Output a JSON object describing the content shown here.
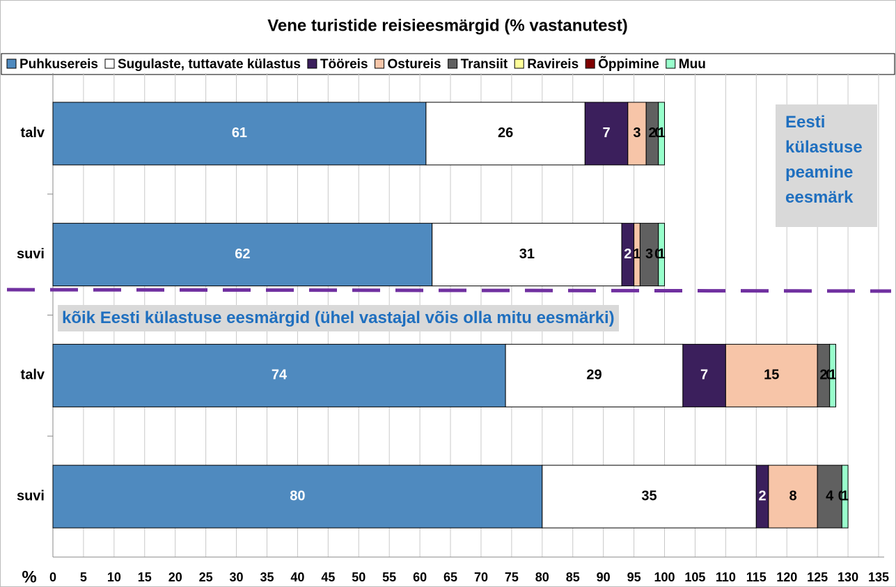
{
  "chart_data": {
    "type": "stacked_bar_horizontal",
    "title": "Vene turistide reisieesmärgid (% vastanutest)",
    "categories": [
      "talv",
      "suvi",
      "talv",
      "suvi"
    ],
    "series": [
      {
        "name": "Puhkusereis",
        "color": "#4f8abf",
        "values": [
          61,
          62,
          74,
          80
        ]
      },
      {
        "name": "Sugulaste, tuttavate külastus",
        "color": "#ffffff",
        "values": [
          26,
          31,
          29,
          35
        ]
      },
      {
        "name": "Tööreis",
        "color": "#3b1f5c",
        "values": [
          7,
          2,
          7,
          2
        ]
      },
      {
        "name": "Ostureis",
        "color": "#f7c5a8",
        "values": [
          3,
          1,
          15,
          8
        ]
      },
      {
        "name": "Transiit",
        "color": "#606060",
        "values": [
          2,
          3,
          2,
          4
        ]
      },
      {
        "name": "Ravireis",
        "color": "#ffff99",
        "values": [
          0,
          0,
          0,
          0
        ]
      },
      {
        "name": "Õppimine",
        "color": "#7f0000",
        "values": [
          0,
          0,
          0,
          0
        ]
      },
      {
        "name": "Muu",
        "color": "#99ffcc",
        "values": [
          1,
          1,
          1,
          1
        ]
      }
    ],
    "x_label": "%",
    "xlim": [
      0,
      135
    ],
    "xticks": [
      0,
      5,
      10,
      15,
      20,
      25,
      30,
      35,
      40,
      45,
      50,
      55,
      60,
      65,
      70,
      75,
      80,
      85,
      90,
      95,
      100,
      105,
      110,
      115,
      120,
      125,
      130,
      135
    ],
    "grid": true,
    "legend": "top",
    "annotations": [
      "Eesti külastuse peamine eesmärk",
      "kõik Eesti külastuse eesmärgid (ühel vastajal võis olla mitu eesmärki)"
    ]
  }
}
